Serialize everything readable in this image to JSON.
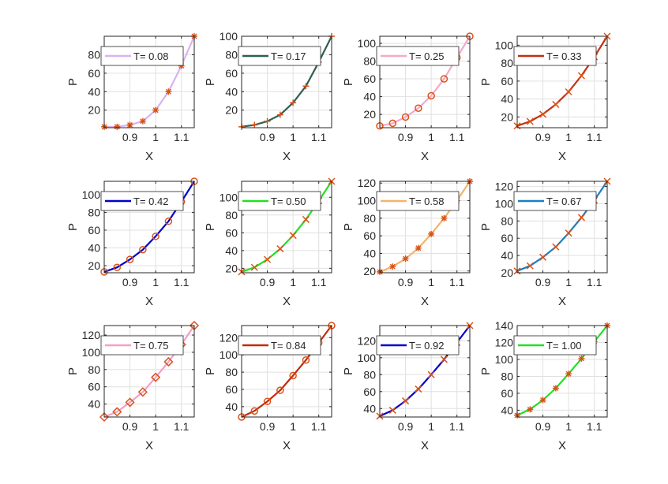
{
  "figure": {
    "background": "#ffffff",
    "axis_color": "#262626",
    "grid_color": "#e0e0e0",
    "marker_color": "#d95319"
  },
  "chart_data": [
    {
      "type": "line",
      "legend": "T= 0.08",
      "legend_location": "top-left",
      "xlabel": "X",
      "ylabel": "P",
      "color": "#d9b3f0",
      "marker": "star",
      "grid": true,
      "x": [
        0.8,
        0.85,
        0.9,
        0.95,
        1.0,
        1.05,
        1.1,
        1.15
      ],
      "y": [
        2,
        2,
        4,
        8,
        20,
        40,
        68,
        100
      ],
      "xlim": [
        0.8,
        1.15
      ],
      "ylim": [
        1,
        100
      ],
      "xticks": [
        0.9,
        1.0,
        1.1
      ],
      "xtick_labels": [
        "0.9",
        "1",
        "1.1"
      ],
      "yticks": [
        20,
        40,
        60,
        80
      ],
      "ytick_labels": [
        "20",
        "40",
        "60",
        "80"
      ]
    },
    {
      "type": "line",
      "legend": "T= 0.17",
      "legend_location": "top-left",
      "xlabel": "X",
      "ylabel": "P",
      "color": "#2f5f50",
      "marker": "plus",
      "grid": true,
      "x": [
        0.8,
        0.85,
        0.9,
        0.95,
        1.0,
        1.05,
        1.1,
        1.15
      ],
      "y": [
        2,
        4,
        8,
        15,
        28,
        46,
        72,
        100
      ],
      "xlim": [
        0.8,
        1.15
      ],
      "ylim": [
        1,
        100
      ],
      "xticks": [
        0.9,
        1.0,
        1.1
      ],
      "xtick_labels": [
        "0.9",
        "1",
        "1.1"
      ],
      "yticks": [
        20,
        40,
        60,
        80,
        100
      ],
      "ytick_labels": [
        "20",
        "40",
        "60",
        "80",
        "100"
      ]
    },
    {
      "type": "line",
      "legend": "T= 0.25",
      "legend_location": "top-left",
      "xlabel": "X",
      "ylabel": "P",
      "color": "#f7a8c8",
      "marker": "circle",
      "grid": true,
      "x": [
        0.8,
        0.85,
        0.9,
        0.95,
        1.0,
        1.05,
        1.1,
        1.15
      ],
      "y": [
        7,
        10,
        17,
        27,
        41,
        60,
        84,
        108
      ],
      "xlim": [
        0.8,
        1.15
      ],
      "ylim": [
        5,
        108
      ],
      "xticks": [
        0.9,
        1.0,
        1.1
      ],
      "xtick_labels": [
        "0.9",
        "1",
        "1.1"
      ],
      "yticks": [
        20,
        40,
        60,
        80,
        100
      ],
      "ytick_labels": [
        "20",
        "40",
        "60",
        "80",
        "100"
      ]
    },
    {
      "type": "line",
      "legend": "T= 0.33",
      "legend_location": "top-left",
      "xlabel": "X",
      "ylabel": "P",
      "color": "#c23010",
      "marker": "x",
      "grid": true,
      "x": [
        0.8,
        0.85,
        0.9,
        0.95,
        1.0,
        1.05,
        1.1,
        1.15
      ],
      "y": [
        10,
        15,
        23,
        34,
        48,
        66,
        87,
        110
      ],
      "xlim": [
        0.8,
        1.15
      ],
      "ylim": [
        8,
        110
      ],
      "xticks": [
        0.9,
        1.0,
        1.1
      ],
      "xtick_labels": [
        "0.9",
        "1",
        "1.1"
      ],
      "yticks": [
        20,
        40,
        60,
        80,
        100
      ],
      "ytick_labels": [
        "20",
        "40",
        "60",
        "80",
        "100"
      ]
    },
    {
      "type": "line",
      "legend": "T= 0.42",
      "legend_location": "top-left",
      "xlabel": "X",
      "ylabel": "P",
      "color": "#0000cc",
      "marker": "circle",
      "grid": true,
      "x": [
        0.8,
        0.85,
        0.9,
        0.95,
        1.0,
        1.05,
        1.1,
        1.15
      ],
      "y": [
        13,
        18,
        27,
        38,
        53,
        70,
        92,
        115
      ],
      "xlim": [
        0.8,
        1.15
      ],
      "ylim": [
        12,
        115
      ],
      "xticks": [
        0.9,
        1.0,
        1.1
      ],
      "xtick_labels": [
        "0.9",
        "1",
        "1.1"
      ],
      "yticks": [
        20,
        40,
        60,
        80,
        100
      ],
      "ytick_labels": [
        "20",
        "40",
        "60",
        "80",
        "100"
      ]
    },
    {
      "type": "line",
      "legend": "T= 0.50",
      "legend_location": "top-left",
      "xlabel": "X",
      "ylabel": "P",
      "color": "#22e022",
      "marker": "x",
      "grid": true,
      "x": [
        0.8,
        0.85,
        0.9,
        0.95,
        1.0,
        1.05,
        1.1,
        1.15
      ],
      "y": [
        16,
        21,
        30,
        42,
        57,
        75,
        96,
        118
      ],
      "xlim": [
        0.8,
        1.15
      ],
      "ylim": [
        15,
        118
      ],
      "xticks": [
        0.9,
        1.0,
        1.1
      ],
      "xtick_labels": [
        "0.9",
        "1",
        "1.1"
      ],
      "yticks": [
        20,
        40,
        60,
        80,
        100
      ],
      "ytick_labels": [
        "20",
        "40",
        "60",
        "80",
        "100"
      ]
    },
    {
      "type": "line",
      "legend": "T= 0.58",
      "legend_location": "top-left",
      "xlabel": "X",
      "ylabel": "P",
      "color": "#f5b36a",
      "marker": "star",
      "grid": true,
      "x": [
        0.8,
        0.85,
        0.9,
        0.95,
        1.0,
        1.05,
        1.1,
        1.15
      ],
      "y": [
        19,
        25,
        34,
        46,
        62,
        80,
        100,
        122
      ],
      "xlim": [
        0.8,
        1.15
      ],
      "ylim": [
        18,
        122
      ],
      "xticks": [
        0.9,
        1.0,
        1.1
      ],
      "xtick_labels": [
        "0.9",
        "1",
        "1.1"
      ],
      "yticks": [
        20,
        40,
        60,
        80,
        100,
        120
      ],
      "ytick_labels": [
        "20",
        "40",
        "60",
        "80",
        "100",
        "120"
      ]
    },
    {
      "type": "line",
      "legend": "T= 0.67",
      "legend_location": "top-left",
      "xlabel": "X",
      "ylabel": "P",
      "color": "#1a7fc0",
      "marker": "x",
      "grid": true,
      "x": [
        0.8,
        0.85,
        0.9,
        0.95,
        1.0,
        1.05,
        1.1,
        1.15
      ],
      "y": [
        22,
        28,
        38,
        50,
        66,
        84,
        104,
        126
      ],
      "xlim": [
        0.8,
        1.15
      ],
      "ylim": [
        20,
        126
      ],
      "xticks": [
        0.9,
        1.0,
        1.1
      ],
      "xtick_labels": [
        "0.9",
        "1",
        "1.1"
      ],
      "yticks": [
        20,
        40,
        60,
        80,
        100,
        120
      ],
      "ytick_labels": [
        "20",
        "40",
        "60",
        "80",
        "100",
        "120"
      ]
    },
    {
      "type": "line",
      "legend": "T= 0.75",
      "legend_location": "top-left",
      "xlabel": "X",
      "ylabel": "P",
      "color": "#f59ec8",
      "marker": "diamond",
      "grid": true,
      "x": [
        0.8,
        0.85,
        0.9,
        0.95,
        1.0,
        1.05,
        1.1,
        1.15
      ],
      "y": [
        25,
        31,
        42,
        54,
        71,
        89,
        109,
        131
      ],
      "xlim": [
        0.8,
        1.15
      ],
      "ylim": [
        25,
        131
      ],
      "xticks": [
        0.9,
        1.0,
        1.1
      ],
      "xtick_labels": [
        "0.9",
        "1",
        "1.1"
      ],
      "yticks": [
        40,
        60,
        80,
        100,
        120
      ],
      "ytick_labels": [
        "40",
        "60",
        "80",
        "100",
        "120"
      ]
    },
    {
      "type": "line",
      "legend": "T= 0.84",
      "legend_location": "top-left",
      "xlabel": "X",
      "ylabel": "P",
      "color": "#c42a0a",
      "marker": "circle",
      "grid": true,
      "x": [
        0.8,
        0.85,
        0.9,
        0.95,
        1.0,
        1.05,
        1.1,
        1.15
      ],
      "y": [
        28,
        35,
        46,
        59,
        76,
        94,
        114,
        134
      ],
      "xlim": [
        0.8,
        1.15
      ],
      "ylim": [
        28,
        134
      ],
      "xticks": [
        0.9,
        1.0,
        1.1
      ],
      "xtick_labels": [
        "0.9",
        "1",
        "1.1"
      ],
      "yticks": [
        40,
        60,
        80,
        100,
        120
      ],
      "ytick_labels": [
        "40",
        "60",
        "80",
        "100",
        "120"
      ]
    },
    {
      "type": "line",
      "legend": "T= 0.92",
      "legend_location": "top-left",
      "xlabel": "X",
      "ylabel": "P",
      "color": "#0000cc",
      "marker": "x",
      "grid": true,
      "x": [
        0.8,
        0.85,
        0.9,
        0.95,
        1.0,
        1.05,
        1.1,
        1.15
      ],
      "y": [
        31,
        38,
        49,
        63,
        80,
        98,
        118,
        138
      ],
      "xlim": [
        0.8,
        1.15
      ],
      "ylim": [
        30,
        138
      ],
      "xticks": [
        0.9,
        1.0,
        1.1
      ],
      "xtick_labels": [
        "0.9",
        "1",
        "1.1"
      ],
      "yticks": [
        40,
        60,
        80,
        100,
        120
      ],
      "ytick_labels": [
        "40",
        "60",
        "80",
        "100",
        "120"
      ]
    },
    {
      "type": "line",
      "legend": "T= 1.00",
      "legend_location": "top-left",
      "xlabel": "X",
      "ylabel": "P",
      "color": "#22e022",
      "marker": "star",
      "grid": true,
      "x": [
        0.8,
        0.85,
        0.9,
        0.95,
        1.0,
        1.05,
        1.1,
        1.15
      ],
      "y": [
        34,
        41,
        52,
        66,
        83,
        101,
        121,
        140
      ],
      "xlim": [
        0.8,
        1.15
      ],
      "ylim": [
        32,
        140
      ],
      "xticks": [
        0.9,
        1.0,
        1.1
      ],
      "xtick_labels": [
        "0.9",
        "1",
        "1.1"
      ],
      "yticks": [
        40,
        60,
        80,
        100,
        120,
        140
      ],
      "ytick_labels": [
        "40",
        "60",
        "80",
        "100",
        "120",
        "140"
      ]
    }
  ]
}
